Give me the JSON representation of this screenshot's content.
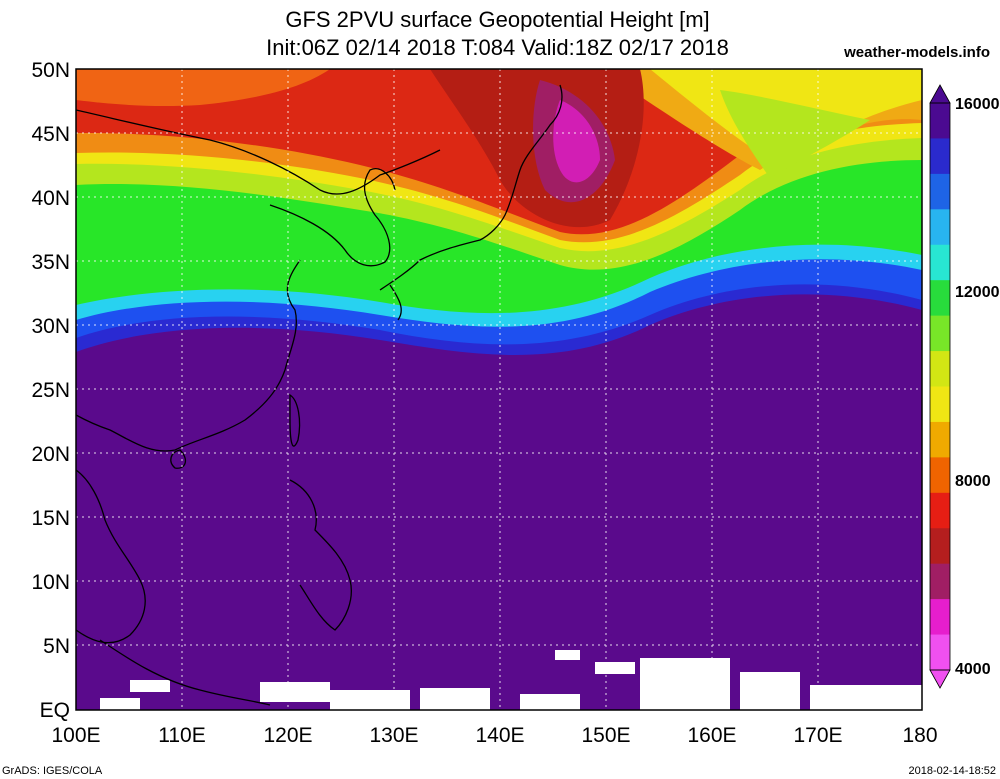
{
  "title": {
    "line1": "GFS 2PVU surface Geopotential Height [m]",
    "line2": "Init:06Z 02/14 2018 T:084 Valid:18Z 02/17 2018"
  },
  "brand": "weather-models.info",
  "footer": {
    "left": "GrADS: IGES/COLA",
    "right": "2018-02-14-18:52"
  },
  "map": {
    "region": "Western Pacific / East Asia",
    "lat_labels": [
      "50N",
      "45N",
      "40N",
      "35N",
      "30N",
      "25N",
      "20N",
      "15N",
      "10N",
      "5N",
      "EQ"
    ],
    "lon_labels": [
      "100E",
      "110E",
      "120E",
      "130E",
      "140E",
      "150E",
      "160E",
      "170E",
      "180"
    ],
    "lat_range": [
      0,
      50
    ],
    "lon_range": [
      100,
      180
    ],
    "gridlines": "dotted"
  },
  "colorbar": {
    "labels": [
      "16000",
      "12000",
      "8000",
      "4000"
    ],
    "values": [
      16000,
      12000,
      8000,
      4000
    ],
    "colors": [
      "#4b0a91",
      "#2a2acd",
      "#1e64e6",
      "#28b4f0",
      "#28e6d2",
      "#28dc3c",
      "#78e628",
      "#d2e614",
      "#f0e614",
      "#f0aa00",
      "#f06400",
      "#e61e14",
      "#b41e1e",
      "#a01e64",
      "#e61ecd",
      "#f050f0"
    ]
  },
  "field": {
    "variable": "2PVU surface Geopotential Height",
    "unit": "m",
    "colors": {
      "low": "#5a0a8c",
      "deep_blue": "#2a2ad2",
      "blue": "#1e50f0",
      "cyan": "#28d2f0",
      "green": "#28e628",
      "yellow_green": "#b4e61e",
      "yellow": "#f0e614",
      "orange": "#f08c14",
      "red": "#dc2814",
      "dark_red": "#b41e14",
      "magenta": "#d21eb4"
    }
  }
}
